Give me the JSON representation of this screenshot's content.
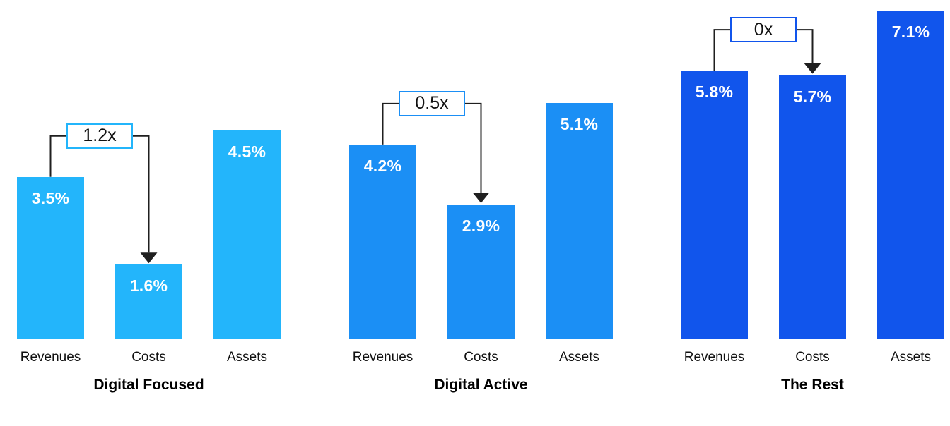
{
  "chart_data": {
    "type": "bar",
    "categories": [
      "Revenues",
      "Costs",
      "Assets"
    ],
    "value_unit": "%",
    "grid": false,
    "axis_hidden": true,
    "groups": [
      {
        "title": "Digital Focused",
        "color": "#23B5FB",
        "ratio_label": "1.2x",
        "bars": [
          {
            "category": "Revenues",
            "value": 3.5,
            "value_label": "3.5%"
          },
          {
            "category": "Costs",
            "value": 1.6,
            "value_label": "1.6%"
          },
          {
            "category": "Assets",
            "value": 4.5,
            "value_label": "4.5%"
          }
        ]
      },
      {
        "title": "Digital Active",
        "color": "#1B8FF5",
        "ratio_label": "0.5x",
        "bars": [
          {
            "category": "Revenues",
            "value": 4.2,
            "value_label": "4.2%"
          },
          {
            "category": "Costs",
            "value": 2.9,
            "value_label": "2.9%"
          },
          {
            "category": "Assets",
            "value": 5.1,
            "value_label": "5.1%"
          }
        ]
      },
      {
        "title": "The Rest",
        "color": "#1155EC",
        "ratio_label": "0x",
        "bars": [
          {
            "category": "Revenues",
            "value": 5.8,
            "value_label": "5.8%"
          },
          {
            "category": "Costs",
            "value": 5.7,
            "value_label": "5.7%"
          },
          {
            "category": "Assets",
            "value": 7.1,
            "value_label": "7.1%"
          }
        ]
      }
    ]
  },
  "styles": {
    "background": "#FFFFFF",
    "connector_color": "#1F1F1F",
    "value_label_color": "#FFFFFF",
    "axis_label_color": "#111111",
    "title_color": "#000000",
    "ratio_box_fill": "#FFFFFF",
    "ratio_text_color": "#111111"
  }
}
